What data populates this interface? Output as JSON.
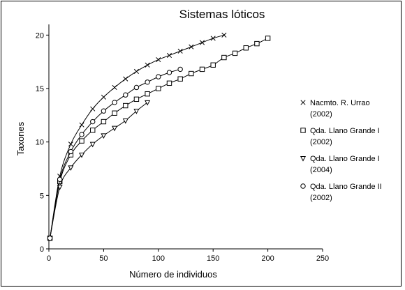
{
  "chart_data": {
    "type": "line",
    "title": "Sistemas lóticos",
    "xlabel": "Número de individuos",
    "ylabel": "Taxones",
    "xlim": [
      0,
      250
    ],
    "ylim": [
      0,
      21
    ],
    "xticks": [
      0,
      50,
      100,
      150,
      200,
      250
    ],
    "yticks": [
      0,
      5,
      10,
      15,
      20
    ],
    "grid": false,
    "legend_position": "right",
    "series": [
      {
        "name": "Nacmto. R. Urrao (2002)",
        "name_lines": [
          "Nacmto. R. Urrao",
          "(2002)"
        ],
        "marker": "x",
        "x": [
          1,
          10,
          20,
          30,
          40,
          50,
          60,
          70,
          80,
          90,
          100,
          110,
          120,
          130,
          140,
          150,
          160
        ],
        "y": [
          1,
          6.8,
          9.8,
          11.6,
          13.1,
          14.2,
          15.1,
          15.9,
          16.6,
          17.2,
          17.7,
          18.1,
          18.5,
          18.9,
          19.3,
          19.7,
          20.0
        ]
      },
      {
        "name": "Qda. Llano Grande I (2002)",
        "name_lines": [
          "Qda. Llano Grande I",
          "(2002)"
        ],
        "marker": "square",
        "x": [
          1,
          10,
          20,
          30,
          40,
          50,
          60,
          70,
          80,
          90,
          100,
          110,
          120,
          130,
          140,
          150,
          160,
          170,
          180,
          190,
          200
        ],
        "y": [
          1,
          6.3,
          8.8,
          10.1,
          11.1,
          11.9,
          12.7,
          13.4,
          14.0,
          14.5,
          15.0,
          15.5,
          15.9,
          16.4,
          16.8,
          17.2,
          17.9,
          18.3,
          18.8,
          19.2,
          19.7
        ]
      },
      {
        "name": "Qda. Llano Grande I (2004)",
        "name_lines": [
          "Qda. Llano Grande I",
          "(2004)"
        ],
        "marker": "triangle-down",
        "x": [
          1,
          10,
          20,
          30,
          40,
          50,
          60,
          70,
          80,
          90
        ],
        "y": [
          1,
          5.8,
          7.6,
          8.8,
          9.8,
          10.6,
          11.3,
          12.0,
          12.9,
          13.7
        ]
      },
      {
        "name": "Qda. Llano Grande II (2002)",
        "name_lines": [
          "Qda. Llano Grande II",
          "(2002)"
        ],
        "marker": "circle",
        "x": [
          1,
          10,
          20,
          30,
          40,
          50,
          60,
          70,
          80,
          90,
          100,
          110,
          120
        ],
        "y": [
          1,
          6.5,
          9.1,
          10.7,
          11.9,
          12.9,
          13.7,
          14.4,
          15.1,
          15.6,
          16.1,
          16.5,
          16.8
        ]
      }
    ]
  }
}
